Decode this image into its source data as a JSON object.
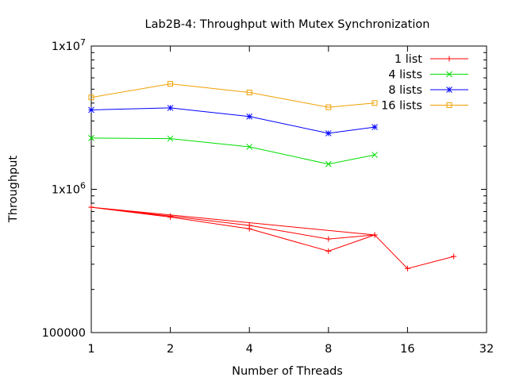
{
  "chart_data": {
    "type": "line",
    "title": "Lab2B-4: Throughput with Mutex Synchronization",
    "xlabel": "Number of Threads",
    "ylabel": "Throughput",
    "x_scale": "log2",
    "y_scale": "log10",
    "xlim": [
      1,
      32
    ],
    "ylim": [
      100000,
      10000000
    ],
    "x_ticks": [
      1,
      2,
      4,
      8,
      16,
      32
    ],
    "x_tick_labels": [
      "1",
      "2",
      "4",
      "8",
      "16",
      "32"
    ],
    "y_ticks": [
      100000,
      1000000,
      10000000
    ],
    "y_tick_labels": [
      "100000",
      "1x10^6",
      "1x10^7"
    ],
    "grid": false,
    "legend": "top-right",
    "series": [
      {
        "name": "1 list",
        "color": "#ff0000",
        "marker": "plus",
        "x": [
          1,
          2,
          4,
          8,
          12,
          1,
          2,
          4,
          8,
          12,
          16,
          24
        ],
        "y": [
          750000,
          640000,
          530000,
          370000,
          480000,
          750000,
          650000,
          560000,
          450000,
          480000,
          280000,
          340000
        ]
      },
      {
        "name": "4 lists",
        "color": "#00dd00",
        "marker": "cross",
        "x": [
          1,
          2,
          4,
          8,
          12
        ],
        "y": [
          2280000,
          2260000,
          1980000,
          1500000,
          1740000
        ]
      },
      {
        "name": "8 lists",
        "color": "#0000ff",
        "marker": "star",
        "x": [
          1,
          2,
          4,
          8,
          12
        ],
        "y": [
          3580000,
          3700000,
          3220000,
          2460000,
          2720000
        ]
      },
      {
        "name": "16 lists",
        "color": "#f0a000",
        "marker": "square",
        "x": [
          1,
          2,
          4,
          8,
          12
        ],
        "y": [
          4380000,
          5450000,
          4740000,
          3740000,
          4000000
        ]
      }
    ]
  }
}
